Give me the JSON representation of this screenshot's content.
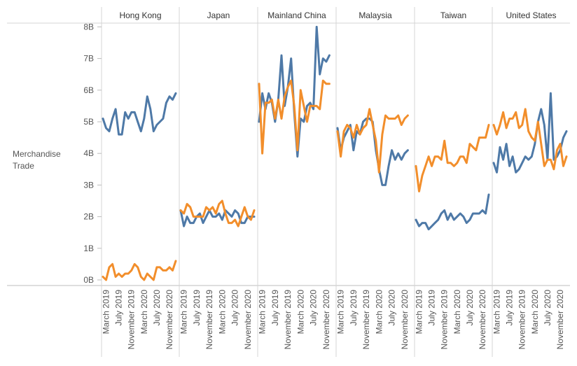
{
  "chart_data": {
    "type": "line",
    "ylabel": "Merchandise Trade",
    "yticks": [
      "0B",
      "1B",
      "2B",
      "3B",
      "4B",
      "5B",
      "6B",
      "7B",
      "8B"
    ],
    "ylim": [
      0,
      8.2
    ],
    "xticks": [
      "March 2019",
      "July 2019",
      "November 2019",
      "March 2020",
      "July 2020",
      "November 2020"
    ],
    "colors": {
      "blue": "#4e79a7",
      "orange": "#f28e2b"
    },
    "panels": [
      {
        "name": "Hong Kong",
        "series": [
          {
            "color": "blue",
            "values": [
              5.1,
              4.8,
              4.7,
              5.1,
              5.4,
              4.6,
              4.6,
              5.3,
              5.1,
              5.3,
              5.3,
              5.0,
              4.7,
              5.1,
              5.8,
              5.4,
              4.7,
              4.9,
              5.0,
              5.1,
              5.6,
              5.8,
              5.7,
              5.9
            ]
          },
          {
            "color": "orange",
            "values": [
              0.1,
              0.0,
              0.4,
              0.5,
              0.1,
              0.2,
              0.1,
              0.2,
              0.2,
              0.3,
              0.5,
              0.4,
              0.1,
              0.0,
              0.2,
              0.1,
              0.0,
              0.4,
              0.4,
              0.3,
              0.3,
              0.4,
              0.3,
              0.6
            ]
          }
        ]
      },
      {
        "name": "Japan",
        "series": [
          {
            "color": "blue",
            "values": [
              2.2,
              1.7,
              2.0,
              1.8,
              1.8,
              2.0,
              2.1,
              1.8,
              2.0,
              2.2,
              2.0,
              2.0,
              2.1,
              1.9,
              2.2,
              2.1,
              2.0,
              2.2,
              2.1,
              1.8,
              1.8,
              2.0,
              2.0,
              2.0
            ]
          },
          {
            "color": "orange",
            "values": [
              2.2,
              2.1,
              2.4,
              2.3,
              2.0,
              2.0,
              2.0,
              2.0,
              2.3,
              2.2,
              2.3,
              2.1,
              2.4,
              2.5,
              2.1,
              1.8,
              1.8,
              1.9,
              1.7,
              2.0,
              2.3,
              2.0,
              1.9,
              2.2
            ]
          }
        ]
      },
      {
        "name": "Mainland China",
        "series": [
          {
            "color": "blue",
            "values": [
              5.0,
              5.9,
              5.4,
              5.9,
              5.6,
              5.0,
              5.7,
              7.1,
              5.5,
              6.1,
              7.0,
              5.3,
              3.9,
              5.1,
              5.0,
              5.5,
              5.6,
              5.4,
              8.0,
              6.5,
              7.0,
              6.9,
              7.1
            ]
          },
          {
            "color": "orange",
            "values": [
              6.2,
              4.0,
              5.6,
              5.6,
              5.7,
              5.1,
              5.7,
              5.1,
              5.8,
              6.1,
              6.3,
              5.5,
              4.1,
              6.0,
              5.5,
              5.0,
              5.5,
              5.5,
              5.5,
              5.4,
              6.3,
              6.2,
              6.2
            ]
          }
        ]
      },
      {
        "name": "Malaysia",
        "series": [
          {
            "color": "blue",
            "values": [
              4.8,
              4.1,
              4.5,
              4.7,
              4.9,
              4.1,
              4.7,
              4.6,
              5.0,
              5.1,
              5.1,
              5.0,
              4.1,
              3.5,
              3.0,
              3.0,
              3.6,
              4.1,
              3.8,
              4.0,
              3.8,
              4.0,
              4.1
            ]
          },
          {
            "color": "orange",
            "values": [
              4.7,
              3.9,
              4.7,
              4.9,
              4.8,
              4.5,
              4.9,
              4.6,
              4.8,
              4.9,
              5.4,
              4.9,
              4.4,
              3.4,
              4.6,
              5.2,
              5.1,
              5.1,
              5.1,
              5.2,
              4.9,
              5.1,
              5.2
            ]
          }
        ]
      },
      {
        "name": "Taiwan",
        "series": [
          {
            "color": "blue",
            "values": [
              1.9,
              1.7,
              1.8,
              1.8,
              1.6,
              1.7,
              1.8,
              1.9,
              2.1,
              2.2,
              1.9,
              2.1,
              1.9,
              2.0,
              2.1,
              2.0,
              1.8,
              1.9,
              2.1,
              2.1,
              2.1,
              2.2,
              2.1,
              2.7
            ]
          },
          {
            "color": "orange",
            "values": [
              3.6,
              2.8,
              3.3,
              3.6,
              3.9,
              3.6,
              3.9,
              3.9,
              3.8,
              4.4,
              3.7,
              3.7,
              3.6,
              3.7,
              3.9,
              3.9,
              3.7,
              4.3,
              4.2,
              4.1,
              4.5,
              4.5,
              4.5,
              4.9
            ]
          }
        ]
      },
      {
        "name": "United States",
        "series": [
          {
            "color": "blue",
            "values": [
              3.7,
              3.4,
              4.2,
              3.8,
              4.3,
              3.6,
              3.9,
              3.4,
              3.5,
              3.7,
              3.9,
              3.8,
              3.9,
              4.3,
              5.0,
              5.4,
              4.9,
              3.8,
              5.9,
              3.8,
              3.9,
              4.1,
              4.5,
              4.7
            ]
          },
          {
            "color": "orange",
            "values": [
              4.9,
              4.6,
              4.9,
              5.3,
              4.8,
              5.1,
              5.1,
              5.3,
              4.8,
              4.9,
              5.4,
              4.7,
              4.5,
              4.4,
              5.0,
              4.3,
              3.6,
              3.8,
              3.8,
              3.5,
              4.1,
              4.3,
              3.6,
              3.9
            ]
          }
        ]
      }
    ]
  }
}
